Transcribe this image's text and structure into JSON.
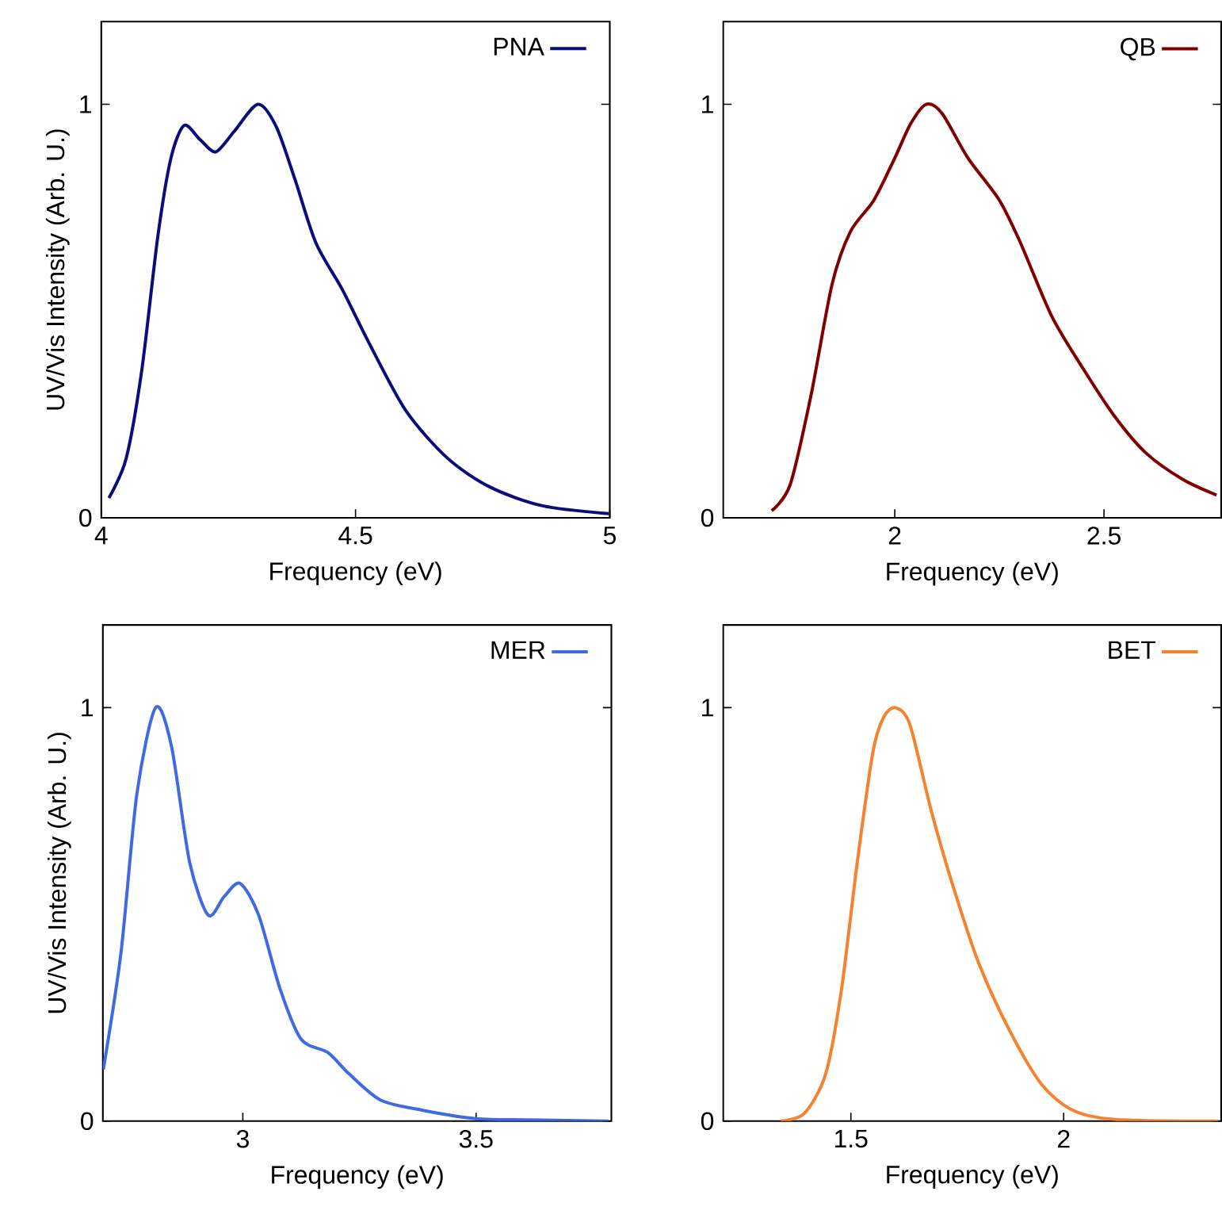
{
  "chart_data": [
    {
      "type": "line",
      "xlabel": "Frequency (eV)",
      "ylabel": "UV/Vis Intensity (Arb. U.)",
      "xlim": [
        4,
        5
      ],
      "ylim": [
        0,
        1.2
      ],
      "xticks": [
        4,
        4.5,
        5
      ],
      "yticks": [
        0,
        1
      ],
      "legend": "top right",
      "series": [
        {
          "name": "PNA",
          "color": "#0c0c7a",
          "x": [
            4.015,
            4.049,
            4.08,
            4.111,
            4.137,
            4.163,
            4.194,
            4.225,
            4.261,
            4.308,
            4.344,
            4.381,
            4.422,
            4.474,
            4.526,
            4.599,
            4.681,
            4.765,
            4.868,
            4.998
          ],
          "values": [
            0.048,
            0.144,
            0.36,
            0.679,
            0.87,
            0.949,
            0.915,
            0.885,
            0.934,
            1.0,
            0.946,
            0.818,
            0.665,
            0.552,
            0.424,
            0.259,
            0.144,
            0.074,
            0.029,
            0.01
          ]
        }
      ]
    },
    {
      "type": "line",
      "xlabel": "Frequency (eV)",
      "xlim": [
        1.59,
        2.78
      ],
      "ylim": [
        0,
        1.2
      ],
      "xticks": [
        2,
        2.5
      ],
      "yticks": [
        0,
        1
      ],
      "legend": "top right",
      "series": [
        {
          "name": "QB",
          "color": "#800000",
          "x": [
            1.706,
            1.75,
            1.8,
            1.85,
            1.894,
            1.95,
            2.0,
            2.038,
            2.075,
            2.113,
            2.175,
            2.25,
            2.3,
            2.375,
            2.45,
            2.525,
            2.6,
            2.688,
            2.769
          ],
          "values": [
            0.017,
            0.08,
            0.297,
            0.564,
            0.692,
            0.768,
            0.87,
            0.953,
            1.0,
            0.978,
            0.87,
            0.768,
            0.666,
            0.488,
            0.361,
            0.246,
            0.157,
            0.093,
            0.055
          ]
        }
      ]
    },
    {
      "type": "line",
      "xlabel": "Frequency (eV)",
      "ylabel": "UV/Vis Intensity (Arb. U.)",
      "xlim": [
        2.7,
        3.79
      ],
      "ylim": [
        0,
        1.2
      ],
      "xticks": [
        3,
        3.5
      ],
      "yticks": [
        0,
        1
      ],
      "legend": "top right",
      "series": [
        {
          "name": "MER",
          "color": "#4169e1",
          "x": [
            2.701,
            2.739,
            2.773,
            2.813,
            2.847,
            2.886,
            2.926,
            2.96,
            2.994,
            3.034,
            3.08,
            3.125,
            3.182,
            3.227,
            3.295,
            3.386,
            3.5,
            3.614,
            3.784
          ],
          "values": [
            0.125,
            0.409,
            0.792,
            1.0,
            0.907,
            0.626,
            0.498,
            0.543,
            0.575,
            0.498,
            0.319,
            0.198,
            0.166,
            0.115,
            0.051,
            0.026,
            0.006,
            0.003,
            0.0
          ]
        }
      ]
    },
    {
      "type": "line",
      "xlabel": "Frequency (eV)",
      "xlim": [
        1.2,
        2.37
      ],
      "ylim": [
        0,
        1.2
      ],
      "xticks": [
        1.5,
        2
      ],
      "yticks": [
        0,
        1
      ],
      "legend": "top right",
      "series": [
        {
          "name": "BET",
          "color": "#f4822f",
          "x": [
            1.335,
            1.391,
            1.441,
            1.478,
            1.515,
            1.552,
            1.577,
            1.605,
            1.639,
            1.688,
            1.738,
            1.8,
            1.874,
            1.948,
            2.022,
            2.121,
            2.363
          ],
          "values": [
            0.0,
            0.019,
            0.115,
            0.319,
            0.626,
            0.894,
            0.977,
            1.0,
            0.958,
            0.754,
            0.575,
            0.383,
            0.217,
            0.089,
            0.026,
            0.004,
            0.0
          ]
        }
      ]
    }
  ]
}
